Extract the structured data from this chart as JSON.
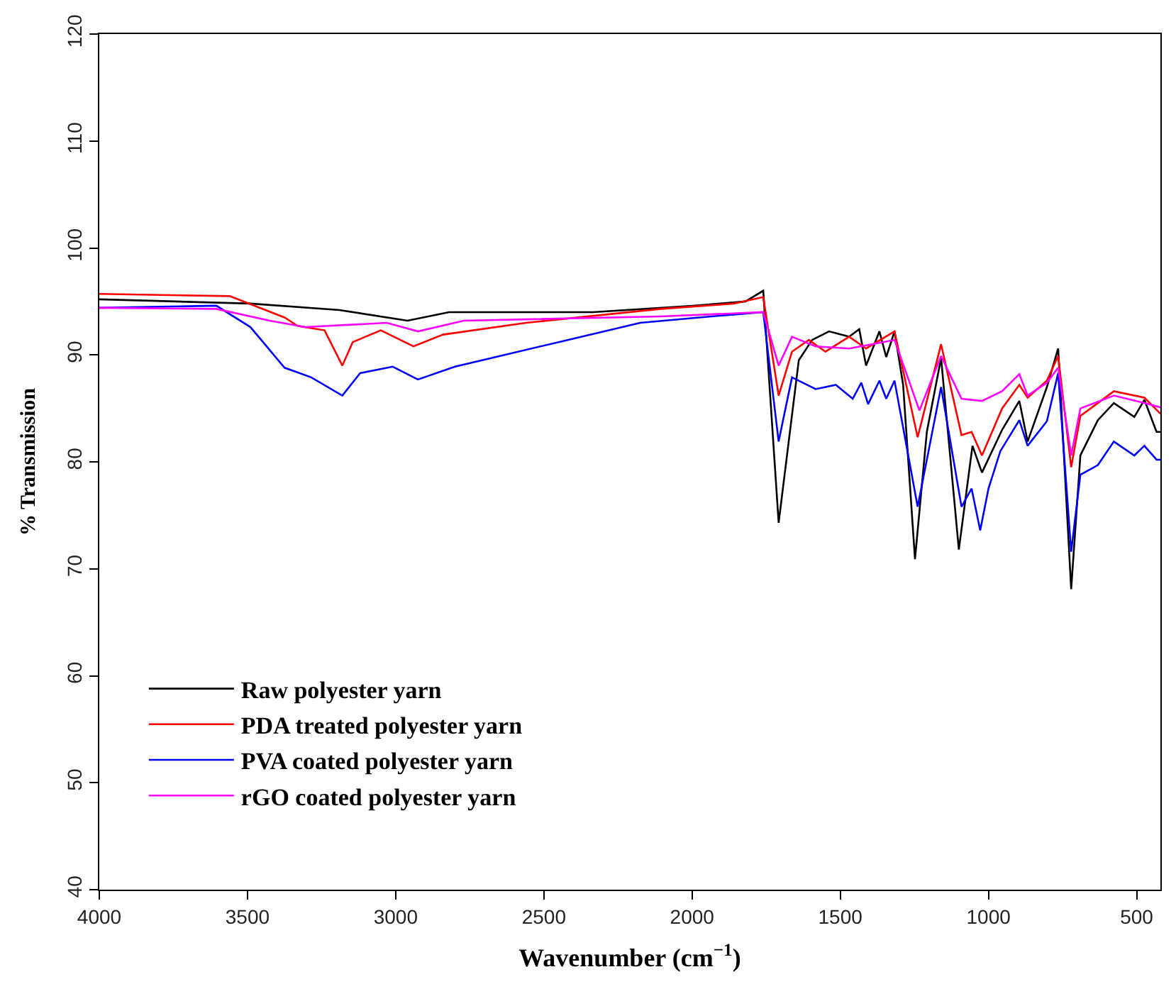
{
  "chart_data": {
    "type": "line",
    "xlabel": "Wavenumber (cm$^{−1}$)",
    "ylabel": "% Transmission",
    "xlim": [
      4000,
      420
    ],
    "ylim": [
      40,
      120
    ],
    "xticks": [
      4000,
      3500,
      3000,
      2500,
      2000,
      1500,
      1000,
      500
    ],
    "yticks": [
      40,
      50,
      60,
      70,
      80,
      90,
      100,
      110,
      120
    ],
    "legend": "bottom left",
    "marker": "none",
    "line_style": "solid",
    "series": [
      {
        "name": "Raw polyester yarn",
        "color": "#000000",
        "x": [
          4000,
          3490,
          3190,
          2960,
          2820,
          2335,
          1990,
          1820,
          1760,
          1708,
          1640,
          1595,
          1538,
          1470,
          1436,
          1413,
          1368,
          1345,
          1317,
          1288,
          1248,
          1208,
          1160,
          1100,
          1054,
          1022,
          954,
          896,
          868,
          803,
          765,
          748,
          721,
          690,
          631,
          577,
          508,
          474,
          433,
          420
        ],
        "values": [
          95.2,
          94.8,
          94.2,
          93.2,
          94.0,
          94.0,
          94.6,
          95.0,
          96.0,
          74.3,
          89.5,
          91.4,
          92.2,
          91.7,
          92.4,
          89.0,
          92.2,
          89.8,
          92.2,
          87.2,
          70.9,
          82.8,
          89.7,
          71.8,
          81.5,
          79.0,
          83.0,
          85.7,
          81.9,
          87.0,
          90.6,
          81.9,
          68.1,
          80.6,
          83.9,
          85.5,
          84.2,
          85.8,
          82.8,
          82.8
        ]
      },
      {
        "name": "PDA treated polyester yarn",
        "color": "#ff0000",
        "x": [
          4000,
          3560,
          3375,
          3330,
          3240,
          3180,
          3145,
          3050,
          2940,
          2840,
          2560,
          2105,
          1860,
          1760,
          1708,
          1663,
          1606,
          1550,
          1470,
          1413,
          1317,
          1239,
          1160,
          1091,
          1057,
          1022,
          954,
          896,
          868,
          803,
          765,
          721,
          690,
          631,
          577,
          474,
          420
        ],
        "values": [
          95.7,
          95.5,
          93.5,
          92.7,
          92.3,
          89.0,
          91.2,
          92.3,
          90.8,
          91.9,
          93.0,
          94.3,
          94.8,
          95.4,
          86.2,
          90.3,
          91.4,
          90.3,
          91.7,
          90.6,
          92.2,
          82.3,
          91.0,
          82.5,
          82.8,
          80.6,
          85.0,
          87.2,
          86.0,
          87.6,
          89.9,
          79.5,
          84.3,
          85.5,
          86.6,
          86.0,
          84.5
        ]
      },
      {
        "name": "PVA coated polyester yarn",
        "color": "#0000ff",
        "x": [
          4000,
          3605,
          3490,
          3375,
          3285,
          3180,
          3120,
          3010,
          2925,
          2800,
          2450,
          2175,
          1935,
          1760,
          1708,
          1663,
          1583,
          1515,
          1458,
          1429,
          1406,
          1368,
          1345,
          1317,
          1239,
          1160,
          1091,
          1057,
          1028,
          1000,
          960,
          896,
          868,
          803,
          765,
          721,
          690,
          631,
          577,
          508,
          474,
          433,
          420
        ],
        "values": [
          94.4,
          94.6,
          92.6,
          88.8,
          87.9,
          86.2,
          88.3,
          88.9,
          87.7,
          88.9,
          91.2,
          93.0,
          93.6,
          94.0,
          81.9,
          87.9,
          86.8,
          87.2,
          85.9,
          87.4,
          85.4,
          87.6,
          85.9,
          87.6,
          75.8,
          87.0,
          75.8,
          77.5,
          73.6,
          77.5,
          81.0,
          83.9,
          81.5,
          83.8,
          88.3,
          71.6,
          78.8,
          79.7,
          81.9,
          80.6,
          81.5,
          80.2,
          80.2
        ]
      },
      {
        "name": "rGO coated polyester yarn",
        "color": "#ff00ff",
        "x": [
          4000,
          3605,
          3425,
          3305,
          3030,
          2925,
          2770,
          2105,
          1760,
          1708,
          1663,
          1583,
          1470,
          1317,
          1233,
          1160,
          1091,
          1022,
          954,
          896,
          868,
          803,
          765,
          721,
          690,
          577,
          474,
          420
        ],
        "values": [
          94.4,
          94.3,
          93.2,
          92.6,
          93.0,
          92.2,
          93.2,
          93.6,
          94.0,
          89.0,
          91.7,
          90.8,
          90.6,
          91.4,
          84.8,
          89.9,
          85.9,
          85.7,
          86.6,
          88.2,
          86.2,
          87.4,
          88.8,
          80.6,
          85.0,
          86.2,
          85.5,
          85.1
        ]
      }
    ]
  }
}
